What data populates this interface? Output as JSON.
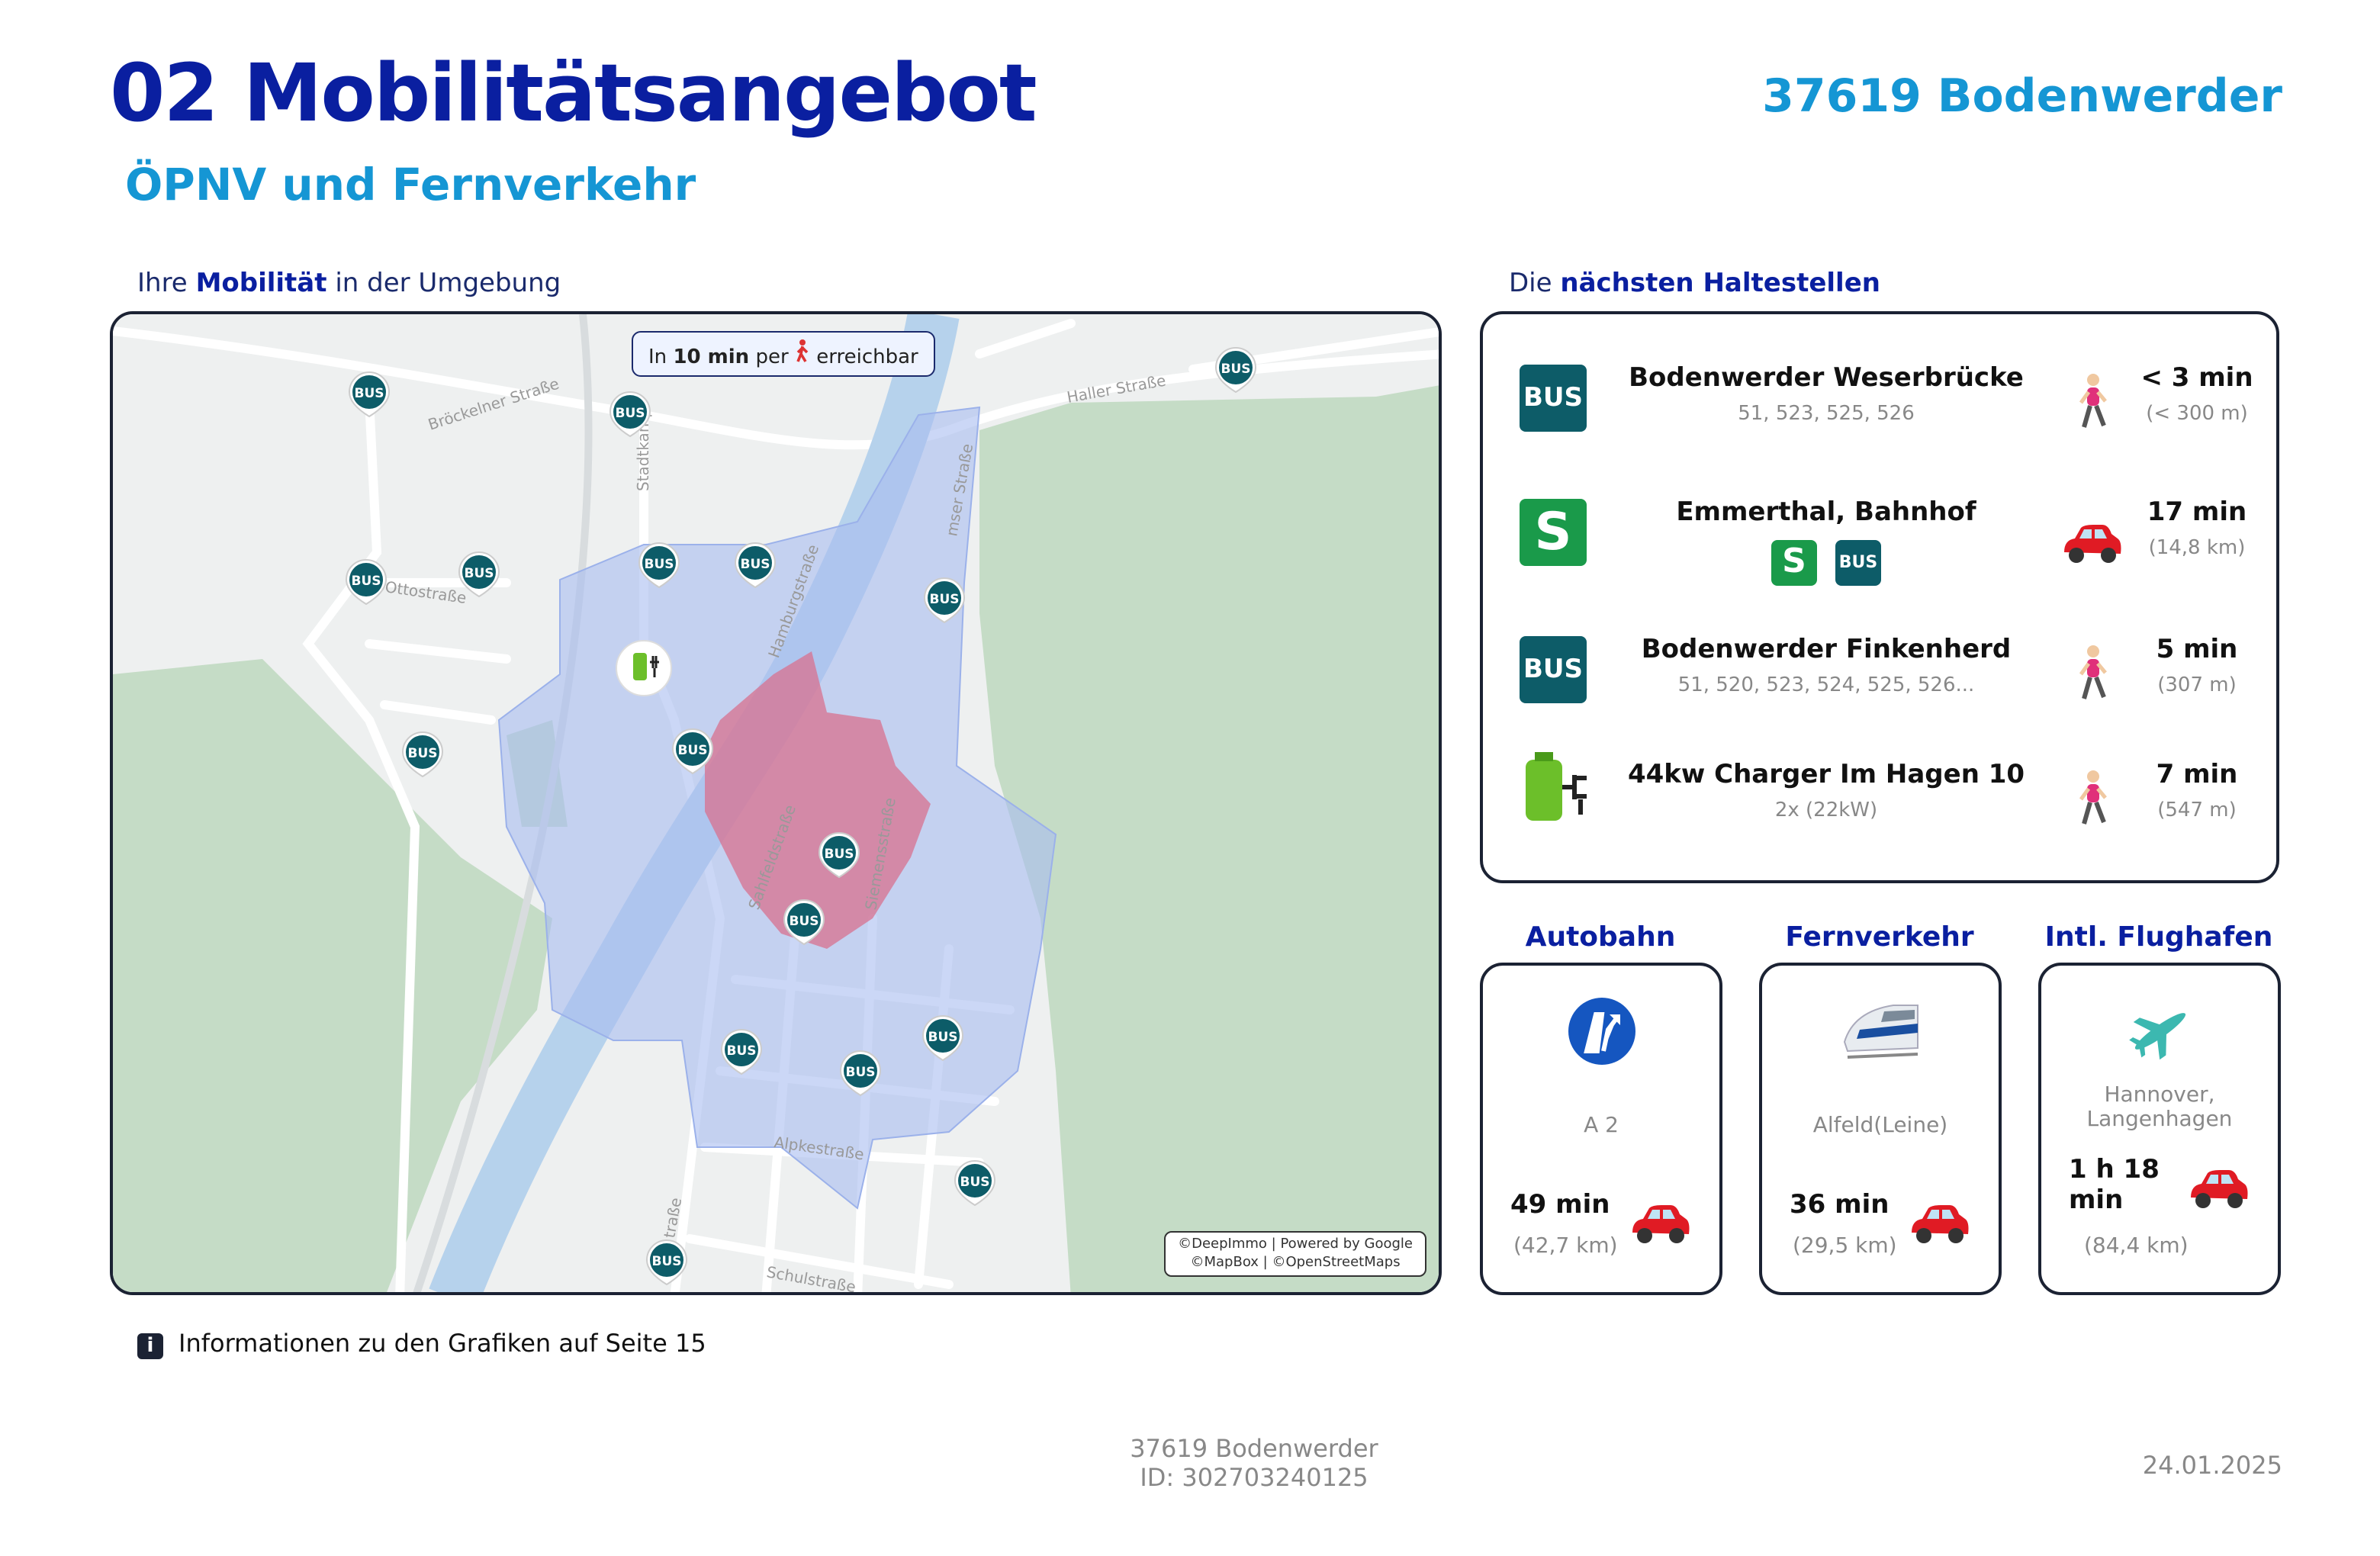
{
  "header": {
    "title": "02 Mobilitätsangebot",
    "subtitle": "ÖPNV und Fernverkehr",
    "location": "37619 Bodenwerder"
  },
  "map_section": {
    "label_pre": "Ihre",
    "label_bold": "Mobilität",
    "label_post": "in der Umgebung",
    "badge_pre": "In",
    "badge_bold": "10 min",
    "badge_mid": "per",
    "badge_post": "erreichbar",
    "marker_label": "BUS",
    "streets": [
      "Bröckelner Straße",
      "Haller Straße",
      "Stadtkamp",
      "Ottostraße",
      "Hamburgstraße",
      "Sahlfeldstraße",
      "Siemensstraße",
      "Alpkestraße",
      "Schulstraße",
      "mser Straße",
      "traße"
    ],
    "attribution_1": "©DeepImmo | Powered by Google",
    "attribution_2": "©MapBox | ©OpenStreetMaps"
  },
  "stops": {
    "label_pre": "Die",
    "label_bold": "nächsten Haltestellen",
    "items": [
      {
        "icon": "BUS",
        "name": "Bodenwerder Weserbrücke",
        "detail": "51, 523, 525, 526",
        "time": "< 3 min",
        "distance": "(< 300 m)"
      },
      {
        "icon": "S",
        "name": "Emmerthal, Bahnhof",
        "badges": [
          "S",
          "BUS"
        ],
        "time": "17 min",
        "distance": "(14,8 km)"
      },
      {
        "icon": "BUS",
        "name": "Bodenwerder Finkenherd",
        "detail": "51, 520, 523, 524, 525, 526...",
        "time": "5 min",
        "distance": "(307 m)"
      },
      {
        "name": "44kw Charger Im Hagen 10",
        "detail": "2x (22kW)",
        "time": "7 min",
        "distance": "(547 m)"
      }
    ]
  },
  "transport": [
    {
      "heading": "Autobahn",
      "place": "A 2",
      "time": "49 min",
      "distance": "(42,7 km)"
    },
    {
      "heading": "Fernverkehr",
      "place": "Alfeld(Leine)",
      "time": "36 min",
      "distance": "(29,5 km)"
    },
    {
      "heading": "Intl. Flughafen",
      "place": "Hannover, Langenhagen",
      "time": "1 h 18 min",
      "distance": "(84,4 km)"
    }
  ],
  "info": {
    "icon": "i",
    "text": "Informationen zu den Grafiken auf Seite 15"
  },
  "footer": {
    "location": "37619 Bodenwerder",
    "id": "ID: 302703240125",
    "date": "24.01.2025"
  }
}
